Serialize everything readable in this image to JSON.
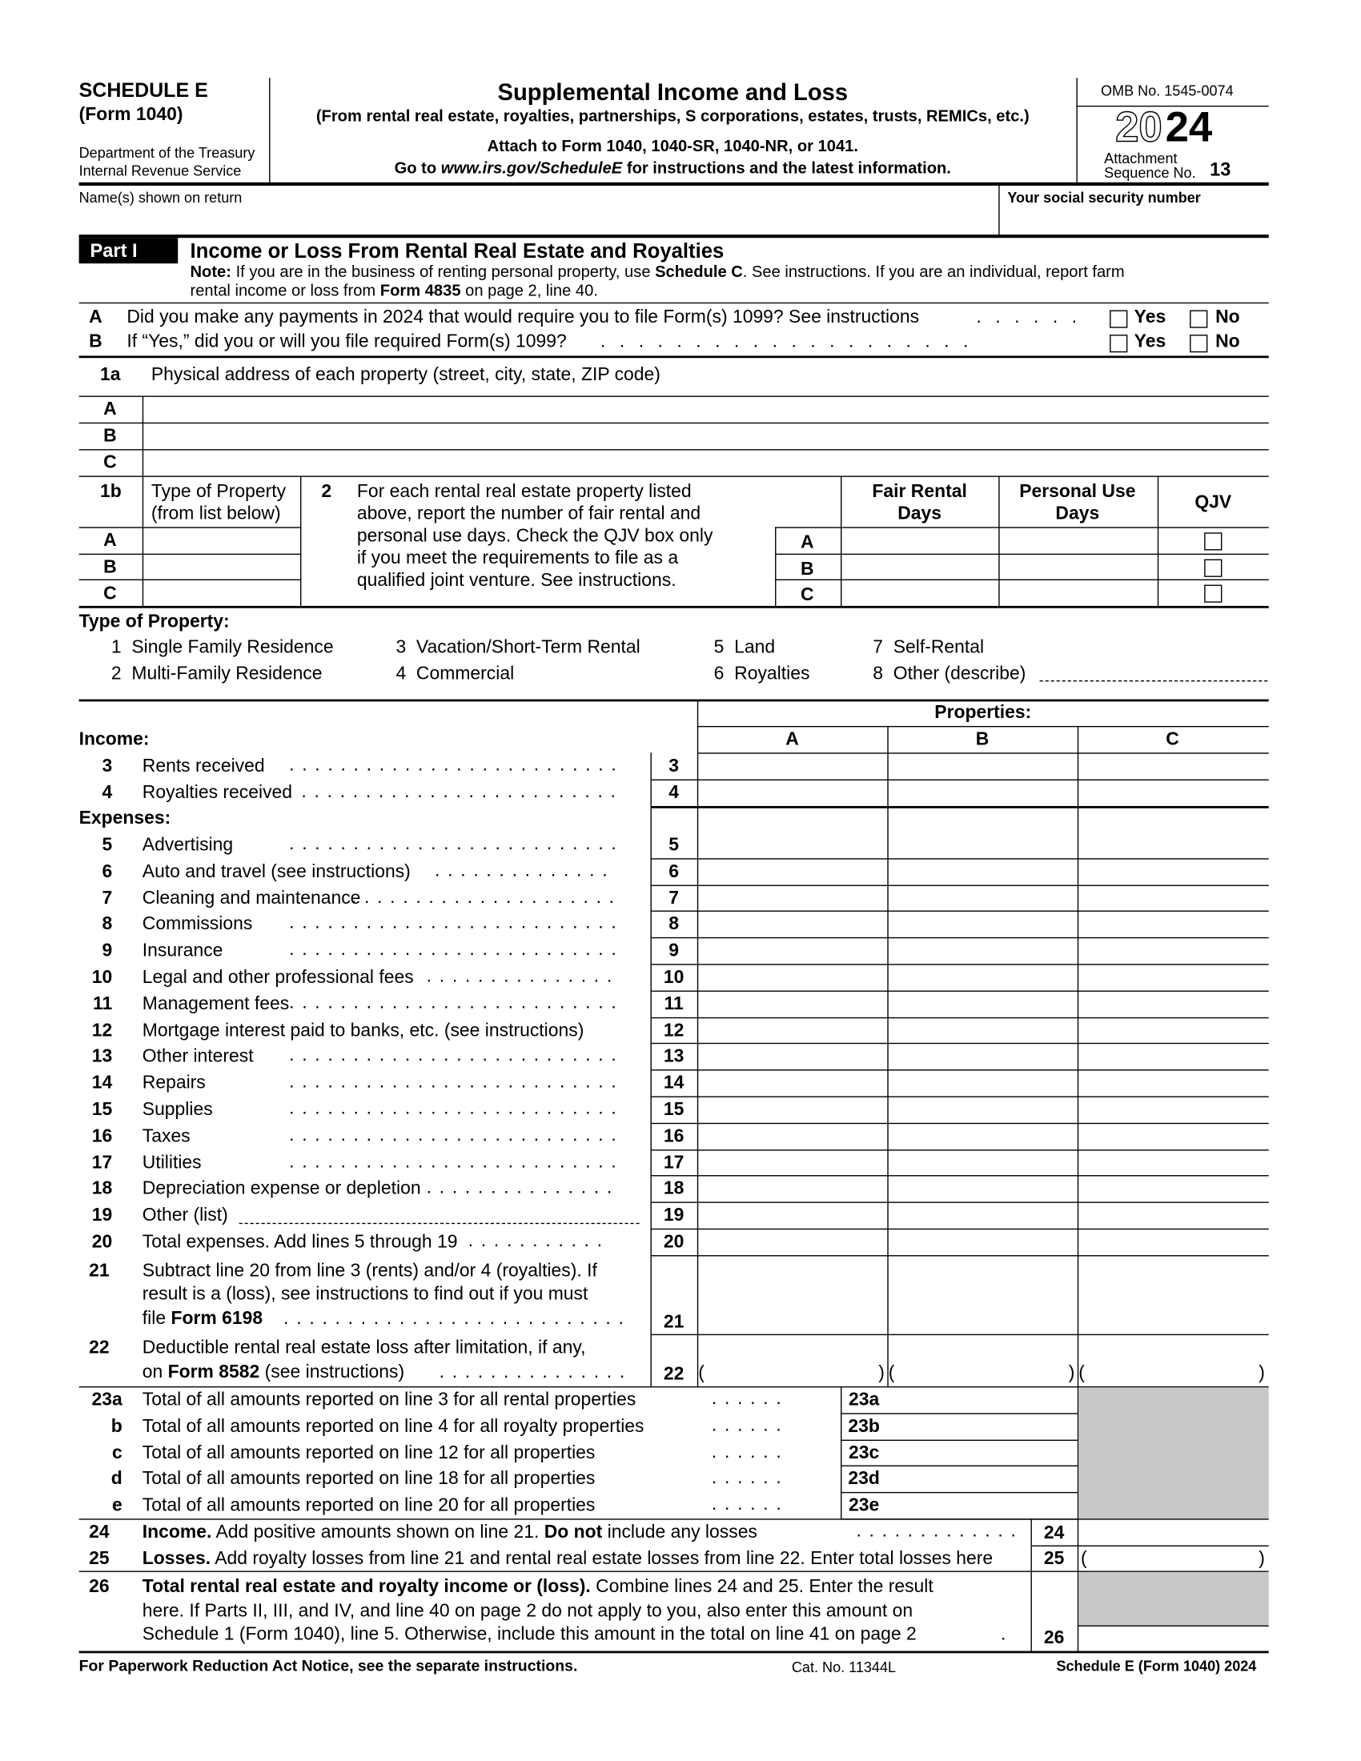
{
  "header": {
    "schedule": "SCHEDULE E",
    "form": "(Form 1040)",
    "dept": "Department of the Treasury",
    "irs": "Internal Revenue Service",
    "title": "Supplemental Income and Loss",
    "subtitle": "(From rental real estate, royalties, partnerships, S corporations, estates, trusts, REMICs, etc.)",
    "attach": "Attach to Form 1040, 1040-SR, 1040-NR, or 1041.",
    "goto_pre": "Go to ",
    "goto_url": "www.irs.gov/ScheduleE",
    "goto_post": " for instructions and the latest information.",
    "omb": "OMB No. 1545-0074",
    "year_outline": "20",
    "year_bold": "24",
    "attachment": "Attachment",
    "sequence": "Sequence No.",
    "sequence_no": "13"
  },
  "names_label": "Name(s) shown on return",
  "ssn_label": "Your social security number",
  "part1": {
    "label": "Part I",
    "title": "Income or Loss From Rental Real Estate and Royalties",
    "note": [
      {
        "t": "Note:",
        "b": true
      },
      {
        "t": " If you are in the business of renting personal property, use "
      },
      {
        "t": "Schedule C",
        "b": true
      },
      {
        "t": ". See instructions. If you are an individual, report farm"
      }
    ],
    "note2": [
      {
        "t": "rental income or loss from "
      },
      {
        "t": "Form 4835",
        "b": true
      },
      {
        "t": " on page 2, line 40."
      }
    ]
  },
  "questions": [
    {
      "letter": "A",
      "text": "Did you make any payments in 2024 that would require you to file Form(s) 1099? See instructions",
      "dots": ". . . . . .",
      "yes": "Yes",
      "no": "No"
    },
    {
      "letter": "B",
      "text": "If “Yes,” did you or will you file required Form(s) 1099?",
      "dots": ". . . . . . . . . . . . . . . . . . . .",
      "yes": "Yes",
      "no": "No"
    }
  ],
  "line1a": {
    "num": "1a",
    "label": "Physical address of each property (street, city, state, ZIP code)",
    "rows": [
      "A",
      "B",
      "C"
    ]
  },
  "line1b": {
    "num": "1b",
    "label1": "Type of Property",
    "label2": "(from list below)",
    "rows": [
      "A",
      "B",
      "C"
    ]
  },
  "line2": {
    "num": "2",
    "text": [
      "For each rental real estate property listed",
      "above, report the number of fair rental and",
      "personal use days. Check the QJV box only",
      "if you meet the requirements to file as a",
      "qualified joint venture. See instructions."
    ],
    "col_fair": [
      "Fair Rental",
      "Days"
    ],
    "col_personal": [
      "Personal Use",
      "Days"
    ],
    "col_qjv": "QJV",
    "rows": [
      "A",
      "B",
      "C"
    ]
  },
  "property_types": {
    "heading": "Type of Property:",
    "items": [
      "1  Single Family Residence",
      "2  Multi-Family Residence",
      "3  Vacation/Short-Term Rental",
      "4  Commercial",
      "5  Land",
      "6  Royalties",
      "7  Self-Rental",
      "8  Other (describe)"
    ]
  },
  "properties": {
    "heading": "Properties:",
    "columns": [
      "A",
      "B",
      "C"
    ]
  },
  "income_heading": "Income:",
  "expenses_heading": "Expenses:",
  "lines": [
    {
      "num": "3",
      "label": "Rents received"
    },
    {
      "num": "4",
      "label": "Royalties received"
    },
    {
      "num": "5",
      "label": "Advertising"
    },
    {
      "num": "6",
      "label": "Auto and travel (see instructions)"
    },
    {
      "num": "7",
      "label": "Cleaning and maintenance"
    },
    {
      "num": "8",
      "label": "Commissions"
    },
    {
      "num": "9",
      "label": "Insurance"
    },
    {
      "num": "10",
      "label": "Legal and other professional fees"
    },
    {
      "num": "11",
      "label": "Management fees"
    },
    {
      "num": "12",
      "label": "Mortgage interest paid to banks, etc. (see instructions)"
    },
    {
      "num": "13",
      "label": "Other interest"
    },
    {
      "num": "14",
      "label": "Repairs"
    },
    {
      "num": "15",
      "label": "Supplies"
    },
    {
      "num": "16",
      "label": "Taxes"
    },
    {
      "num": "17",
      "label": "Utilities"
    },
    {
      "num": "18",
      "label": "Depreciation expense or depletion"
    },
    {
      "num": "19",
      "label": "Other (list)"
    },
    {
      "num": "20",
      "label": "Total expenses. Add lines 5 through 19"
    }
  ],
  "line21": {
    "num": "21",
    "l1": "Subtract line 20 from line 3 (rents) and/or 4 (royalties). If",
    "l2": "result is a (loss), see instructions to find out if you must",
    "l3a": "file ",
    "l3b": "Form 6198"
  },
  "line22": {
    "num": "22",
    "l1": "Deductible rental real estate loss after limitation, if any,",
    "l2a": "on ",
    "l2b": "Form 8582",
    "l2c": " (see instructions)",
    "open": "(",
    "close": ")"
  },
  "line23": [
    {
      "num": "23a",
      "letter": "23a",
      "label": "Total of all amounts reported on line 3 for all rental properties"
    },
    {
      "num": "23b",
      "letter": "b",
      "label": "Total of all amounts reported on line 4 for all royalty properties"
    },
    {
      "num": "23c",
      "letter": "c",
      "label": "Total of all amounts reported on line 12 for all properties"
    },
    {
      "num": "23d",
      "letter": "d",
      "label": "Total of all amounts reported on line 18 for all properties"
    },
    {
      "num": "23e",
      "letter": "e",
      "label": "Total of all amounts reported on line 20 for all properties"
    }
  ],
  "line24": {
    "num": "24",
    "a": "Income.",
    "b": " Add positive amounts shown on line 21. ",
    "c": "Do not",
    "d": " include any losses"
  },
  "line25": {
    "num": "25",
    "a": "Losses.",
    "b": " Add royalty losses from line 21 and rental real estate losses from line 22. Enter total losses here",
    "open": "(",
    "close": ")"
  },
  "line26": {
    "num": "26",
    "a": "Total rental real estate and royalty income or (loss).",
    "b": " Combine lines 24 and 25. Enter the result",
    "l2": "here. If Parts II, III, and IV, and line 40 on page 2 do not apply to you, also enter this amount on",
    "l3": "Schedule 1 (Form 1040), line 5. Otherwise, include this amount in the total on line 41 on page 2"
  },
  "footer": {
    "paperwork": "For Paperwork Reduction Act Notice, see the separate instructions.",
    "cat": "Cat. No. 11344L",
    "form": "Schedule E (Form 1040) 2024"
  },
  "colors": {
    "shade": "#c8c8c8"
  }
}
